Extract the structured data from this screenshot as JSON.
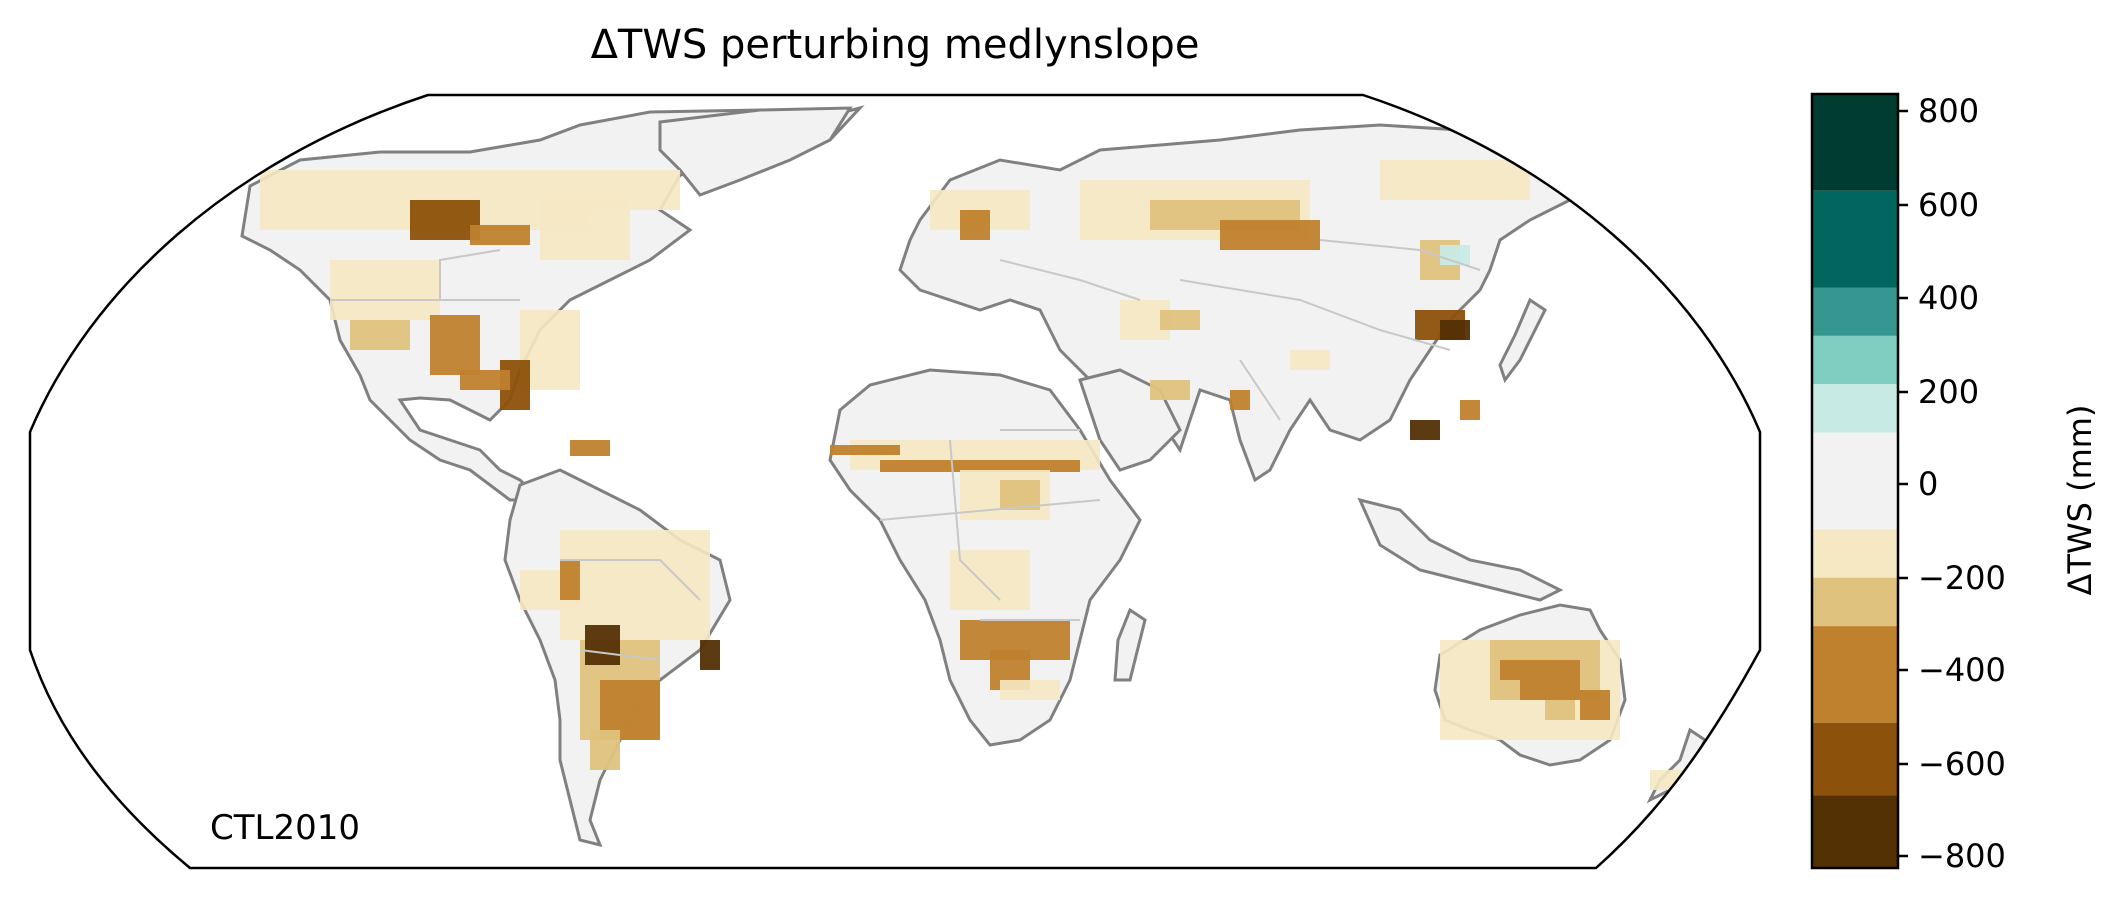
{
  "title": "ΔTWS perturbing medlynslope",
  "corner_label": "CTL2010",
  "colorbar": {
    "label": "ΔTWS (mm)",
    "ticks": [
      "−800",
      "−600",
      "−400",
      "−200",
      "0",
      "200",
      "400",
      "600",
      "800"
    ],
    "bins": [
      {
        "range": [
          600,
          800
        ],
        "color": "#003c30"
      },
      {
        "range": [
          400,
          600
        ],
        "color": "#01665e"
      },
      {
        "range": [
          300,
          400
        ],
        "color": "#35978f"
      },
      {
        "range": [
          200,
          300
        ],
        "color": "#80cdc1"
      },
      {
        "range": [
          100,
          200
        ],
        "color": "#c7eae5"
      },
      {
        "range": [
          -100,
          100
        ],
        "color": "#f2f2f2"
      },
      {
        "range": [
          -200,
          -100
        ],
        "color": "#f6e8c3"
      },
      {
        "range": [
          -300,
          -200
        ],
        "color": "#dfc27d"
      },
      {
        "range": [
          -500,
          -300
        ],
        "color": "#bf812d"
      },
      {
        "range": [
          -650,
          -500
        ],
        "color": "#8c510a"
      },
      {
        "range": [
          -800,
          -650
        ],
        "color": "#543005"
      }
    ]
  },
  "map": {
    "projection": "Robinson",
    "land_color": "#f2f2f2",
    "coastline_color": "#808080",
    "border_color": "#c8c8c8"
  }
}
